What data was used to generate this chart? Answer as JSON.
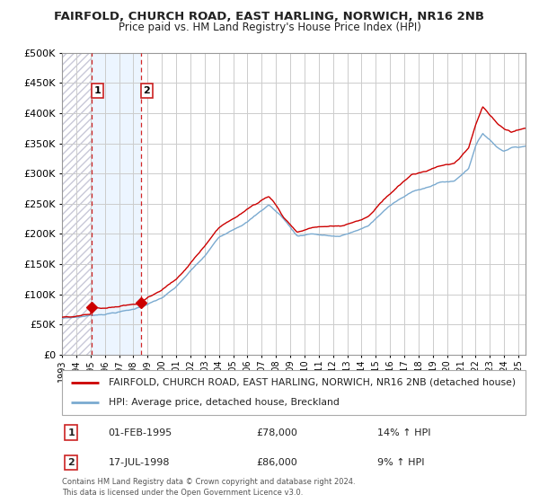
{
  "title1": "FAIRFOLD, CHURCH ROAD, EAST HARLING, NORWICH, NR16 2NB",
  "title2": "Price paid vs. HM Land Registry's House Price Index (HPI)",
  "legend_red": "FAIRFOLD, CHURCH ROAD, EAST HARLING, NORWICH, NR16 2NB (detached house)",
  "legend_blue": "HPI: Average price, detached house, Breckland",
  "annotation1_date": "01-FEB-1995",
  "annotation1_price": "£78,000",
  "annotation1_hpi": "14% ↑ HPI",
  "annotation2_date": "17-JUL-1998",
  "annotation2_price": "£86,000",
  "annotation2_hpi": "9% ↑ HPI",
  "footnote": "Contains HM Land Registry data © Crown copyright and database right 2024.\nThis data is licensed under the Open Government Licence v3.0.",
  "purchase1_x": 1995.08,
  "purchase1_y": 78000,
  "purchase2_x": 1998.54,
  "purchase2_y": 86000,
  "xmin": 1993.0,
  "xmax": 2025.5,
  "ymin": 0,
  "ymax": 500000,
  "yticks": [
    0,
    50000,
    100000,
    150000,
    200000,
    250000,
    300000,
    350000,
    400000,
    450000,
    500000
  ],
  "red_color": "#cc0000",
  "blue_color": "#7aaad0",
  "hatch_color": "#c8c8d8",
  "shade_color": "#ddeeff"
}
